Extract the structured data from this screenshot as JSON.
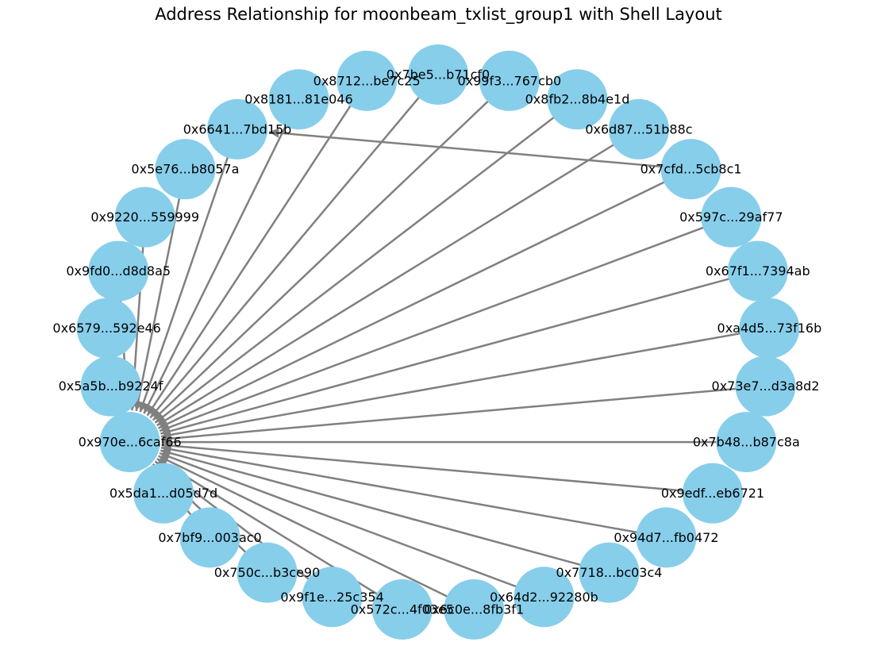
{
  "title": "Address Relationship for moonbeam_txlist_group1 with Shell Layout",
  "colors": {
    "node": "#87ceeb",
    "edge": "#808080",
    "label": "#000000",
    "background": "#ffffff"
  },
  "layout": "shell",
  "central_node": "0x970e...6caf66",
  "nodes": [
    "0x7be5...b71cf0",
    "0x99f3...767cb0",
    "0x8fb2...8b4e1d",
    "0x6d87...51b88c",
    "0x7cfd...5cb8c1",
    "0x597c...29af77",
    "0x67f1...7394ab",
    "0xa4d5...73f16b",
    "0x73e7...d3a8d2",
    "0x7b48...b87c8a",
    "0x9edf...eb6721",
    "0x94d7...fb0472",
    "0x7718...bc03c4",
    "0x64d2...92280b",
    "0x6c0e...8fb3f1",
    "0x572c...4f03e5",
    "0x9f1e...25c354",
    "0x750c...b3ce90",
    "0x7bf9...003ac0",
    "0x5da1...d05d7d",
    "0x970e...6caf66",
    "0x5a5b...b9224f",
    "0x6579...592e46",
    "0x9fd0...d8d8a5",
    "0x9220...559999",
    "0x5e76...b8057a",
    "0x6641...7bd15b",
    "0x8181...81e046",
    "0x8712...be7c25"
  ],
  "edges": [
    [
      "0x970e...6caf66",
      "0x7be5...b71cf0"
    ],
    [
      "0x970e...6caf66",
      "0x99f3...767cb0"
    ],
    [
      "0x970e...6caf66",
      "0x8fb2...8b4e1d"
    ],
    [
      "0x970e...6caf66",
      "0x6d87...51b88c"
    ],
    [
      "0x970e...6caf66",
      "0x7cfd...5cb8c1"
    ],
    [
      "0x970e...6caf66",
      "0x597c...29af77"
    ],
    [
      "0x970e...6caf66",
      "0x67f1...7394ab"
    ],
    [
      "0x970e...6caf66",
      "0xa4d5...73f16b"
    ],
    [
      "0x970e...6caf66",
      "0x73e7...d3a8d2"
    ],
    [
      "0x970e...6caf66",
      "0x7b48...b87c8a"
    ],
    [
      "0x970e...6caf66",
      "0x9edf...eb6721"
    ],
    [
      "0x970e...6caf66",
      "0x94d7...fb0472"
    ],
    [
      "0x970e...6caf66",
      "0x7718...bc03c4"
    ],
    [
      "0x970e...6caf66",
      "0x64d2...92280b"
    ],
    [
      "0x970e...6caf66",
      "0x6c0e...8fb3f1"
    ],
    [
      "0x970e...6caf66",
      "0x572c...4f03e5"
    ],
    [
      "0x970e...6caf66",
      "0x9f1e...25c354"
    ],
    [
      "0x970e...6caf66",
      "0x750c...b3ce90"
    ],
    [
      "0x970e...6caf66",
      "0x7bf9...003ac0"
    ],
    [
      "0x970e...6caf66",
      "0x5da1...d05d7d"
    ],
    [
      "0x970e...6caf66",
      "0x5a5b...b9224f"
    ],
    [
      "0x970e...6caf66",
      "0x6579...592e46"
    ],
    [
      "0x970e...6caf66",
      "0x9fd0...d8d8a5"
    ],
    [
      "0x970e...6caf66",
      "0x9220...559999"
    ],
    [
      "0x970e...6caf66",
      "0x5e76...b8057a"
    ],
    [
      "0x970e...6caf66",
      "0x6641...7bd15b"
    ],
    [
      "0x970e...6caf66",
      "0x8181...81e046"
    ],
    [
      "0x970e...6caf66",
      "0x8712...be7c25"
    ],
    [
      "0x6641...7bd15b",
      "0x7cfd...5cb8c1"
    ]
  ]
}
